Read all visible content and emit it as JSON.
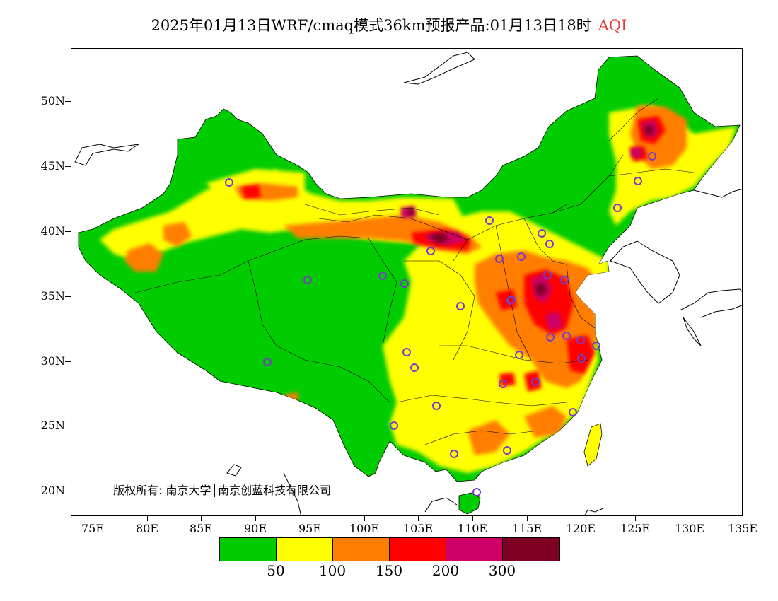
{
  "title": {
    "main": "2025年01月13日WRF/cmaq模式36km预报产品:01月13日18时",
    "highlight": "AQI",
    "highlight_color": "#e23a3a"
  },
  "axes": {
    "y_labels": [
      "50N",
      "45N",
      "40N",
      "35N",
      "30N",
      "25N",
      "20N"
    ],
    "x_labels": [
      "75E",
      "80E",
      "85E",
      "90E",
      "95E",
      "100E",
      "105E",
      "110E",
      "115E",
      "120E",
      "125E",
      "130E",
      "135E"
    ]
  },
  "copyright": "版权所有: 南京大学│南京创蓝科技有限公司",
  "legend": {
    "colors": [
      "#00cc00",
      "#ffff00",
      "#ff7e00",
      "#ff0000",
      "#cc0066",
      "#7e0023"
    ],
    "labels": [
      "50",
      "100",
      "150",
      "200",
      "300"
    ]
  },
  "colors": {
    "good": "#00cc00",
    "moderate": "#ffff00",
    "sensitive": "#ff7e00",
    "unhealthy": "#ff0000",
    "very_unhealthy": "#cc0066",
    "hazardous": "#7e0023",
    "station_marker": "#7a3cc8"
  }
}
